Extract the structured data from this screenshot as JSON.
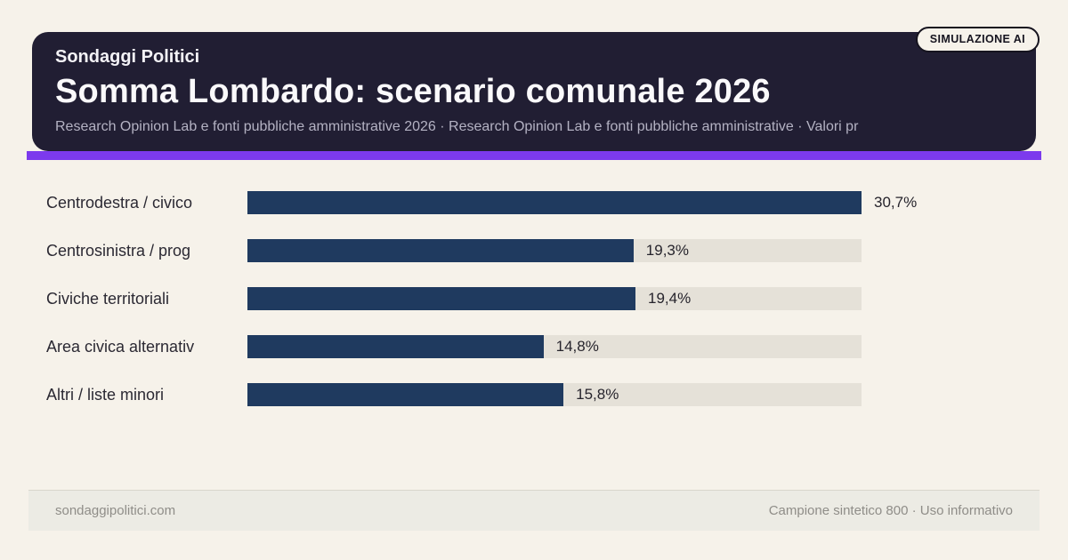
{
  "badge": "SIMULAZIONE AI",
  "header": {
    "kicker": "Sondaggi Politici",
    "title": "Somma Lombardo: scenario comunale 2026",
    "subtitle": "Research Opinion Lab e fonti pubbliche amministrative 2026 · Research Opinion Lab e fonti pubbliche amministrative · Valori pr"
  },
  "chart_data": {
    "type": "bar",
    "orientation": "horizontal",
    "title": "Somma Lombardo: scenario comunale 2026",
    "categories": [
      "Centrodestra / civico",
      "Centrosinistra / prog",
      "Civiche territoriali",
      "Area civica alternativ",
      "Altri / liste minori"
    ],
    "values": [
      30.7,
      19.3,
      19.4,
      14.8,
      15.8
    ],
    "value_labels": [
      "30,7%",
      "19,3%",
      "19,4%",
      "14,8%",
      "15,8%"
    ],
    "xlim": [
      0,
      30.7
    ],
    "grid": false,
    "legend": false
  },
  "footer": {
    "left": "sondaggipolitici.com",
    "right": "Campione sintetico 800 · Uso informativo"
  },
  "colors": {
    "background": "#f6f2ea",
    "header_bg": "#211e33",
    "accent": "#7c3aed",
    "bar": "#1f3a5f",
    "track": "#e5e1d8"
  }
}
